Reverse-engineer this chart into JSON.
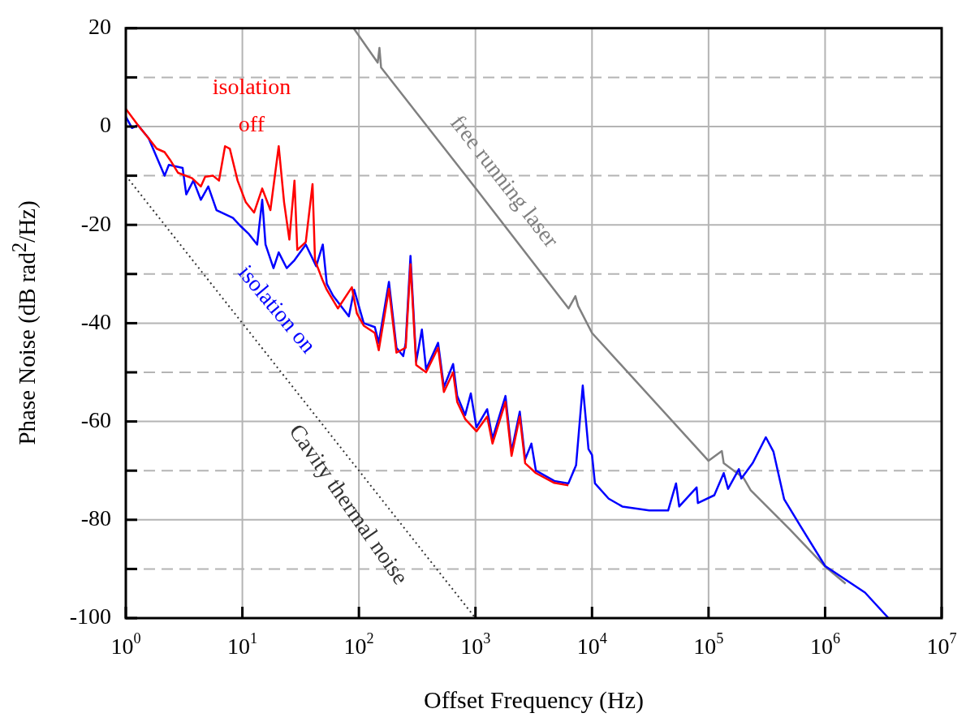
{
  "chart_data": {
    "type": "line",
    "xlabel": "Offset Frequency (Hz)",
    "ylabel": "Phase Noise (dB rad$^{2}$/Hz)",
    "log": "x",
    "grid": true,
    "marker": "none",
    "legend": false,
    "xlim": [
      1,
      10000000
    ],
    "ylim": [
      -100,
      20
    ],
    "xticks": [
      {
        "value": 1,
        "label": "10$^{0}$"
      },
      {
        "value": 10,
        "label": "10$^{1}$"
      },
      {
        "value": 100,
        "label": "10$^{2}$"
      },
      {
        "value": 1000,
        "label": "10$^{3}$"
      },
      {
        "value": 10000,
        "label": "10$^{4}$"
      },
      {
        "value": 100000,
        "label": "10$^{5}$"
      },
      {
        "value": 1000000,
        "label": "10$^{6}$"
      },
      {
        "value": 10000000,
        "label": "10$^{7}$"
      }
    ],
    "yticks": [
      -100,
      {
        "value": -90,
        "label": null
      },
      -80,
      {
        "value": -70,
        "label": null
      },
      -60,
      {
        "value": -50,
        "label": null
      },
      -40,
      {
        "value": -30,
        "label": null
      },
      -20,
      {
        "value": -10,
        "label": null
      },
      0,
      {
        "value": 10,
        "label": null
      },
      20
    ],
    "series": [
      {
        "name": "isolation off",
        "color": "#ff0000",
        "line_style": "solid",
        "x": [
          1,
          1.27,
          1.57,
          1.84,
          2.15,
          2.4,
          2.8,
          3.7,
          4.4,
          4.8,
          5.6,
          6.3,
          7.1,
          7.8,
          9.1,
          10.7,
          12.6,
          14.8,
          17.4,
          20.5,
          22.8,
          25.3,
          28,
          29.6,
          35,
          40,
          42,
          48.5,
          53,
          66,
          87,
          96,
          110,
          137,
          148,
          181,
          210,
          252,
          277,
          310,
          377,
          478,
          536,
          643,
          697,
          816,
          1020,
          1260,
          1400,
          1810,
          2040,
          2400,
          2670,
          3300,
          4750,
          6270
        ],
        "values": [
          3.6,
          0.3,
          -2.4,
          -4.5,
          -5.2,
          -6.8,
          -9.4,
          -10.5,
          -12.2,
          -10.2,
          -10,
          -11,
          -4,
          -4.5,
          -11,
          -15.4,
          -17.5,
          -12.6,
          -17,
          -4,
          -15.4,
          -23,
          -11,
          -25.1,
          -23.5,
          -11.7,
          -27.2,
          -31.1,
          -33.2,
          -37,
          -32.7,
          -38,
          -40.5,
          -42,
          -45.5,
          -33,
          -46,
          -45,
          -28,
          -48.5,
          -50,
          -45,
          -54,
          -50,
          -56,
          -59.5,
          -62,
          -59,
          -64.5,
          -56,
          -67,
          -59,
          -68.5,
          -70.5,
          -72.5,
          -73
        ]
      },
      {
        "name": "isolation on",
        "color": "#0000ff",
        "line_style": "solid",
        "x": [
          1,
          1.13,
          1.27,
          1.57,
          2.15,
          2.34,
          3.07,
          3.3,
          3.8,
          4.4,
          5.1,
          6,
          8.3,
          9.7,
          11.4,
          13.4,
          14.8,
          15.8,
          18.5,
          20.5,
          24,
          28,
          35,
          43,
          49,
          53,
          60,
          82,
          91,
          110,
          137,
          148,
          181,
          210,
          240,
          252,
          277,
          310,
          347,
          377,
          478,
          536,
          643,
          697,
          816,
          912,
          1020,
          1260,
          1400,
          1810,
          2040,
          2400,
          2670,
          3020,
          3300,
          4750,
          6270,
          7300,
          8330,
          9330,
          10000,
          10600,
          13900,
          18200,
          31000,
          45000,
          52600,
          56000,
          79000,
          81000,
          112000,
          135000,
          147000,
          182000,
          191000,
          240000,
          310000,
          360000,
          445000,
          615000,
          1000000,
          2200000,
          3500000
        ],
        "values": [
          2,
          -0.3,
          0.3,
          -2.4,
          -10,
          -7.8,
          -8.4,
          -13.8,
          -11,
          -14.9,
          -12.2,
          -17,
          -18.6,
          -20.3,
          -21.9,
          -24,
          -14.9,
          -24,
          -28.8,
          -25.6,
          -28.8,
          -27.2,
          -24,
          -28.4,
          -24,
          -32,
          -34.4,
          -38.6,
          -33.2,
          -40,
          -40.8,
          -44,
          -31.6,
          -45,
          -46.7,
          -44,
          -26.3,
          -47.8,
          -41.3,
          -49.4,
          -44,
          -53,
          -48.3,
          -54.8,
          -58.7,
          -54.3,
          -61.2,
          -57.5,
          -63.5,
          -54.8,
          -66.1,
          -58,
          -67.7,
          -64.5,
          -70,
          -72.1,
          -72.6,
          -68.9,
          -52.7,
          -65.6,
          -66.8,
          -72.6,
          -75.7,
          -77.3,
          -78.1,
          -78.1,
          -72.6,
          -77.3,
          -73.4,
          -76.6,
          -75,
          -70.5,
          -73.7,
          -69.7,
          -71.6,
          -68.4,
          -63.2,
          -66.1,
          -75.8,
          -81.3,
          -89.4,
          -94.8,
          -100
        ]
      },
      {
        "name": "free running laser",
        "color": "#808080",
        "line_style": "solid",
        "x": [
          90,
          145,
          150,
          155,
          1000,
          6300,
          7200,
          7600,
          10000,
          100000,
          130000,
          135000,
          200000,
          230000,
          500000,
          1000000,
          1500000
        ],
        "values": [
          20,
          13,
          16,
          12,
          -12.5,
          -37,
          -34.5,
          -36.5,
          -42,
          -68,
          -66,
          -68.5,
          -71.5,
          -74,
          -82,
          -89.5,
          -93
        ]
      },
      {
        "name": "Cavity thermal noise",
        "color": "#333333",
        "line_style": "dotted",
        "x": [
          1,
          1000
        ],
        "values": [
          -10,
          -100
        ]
      }
    ]
  }
}
